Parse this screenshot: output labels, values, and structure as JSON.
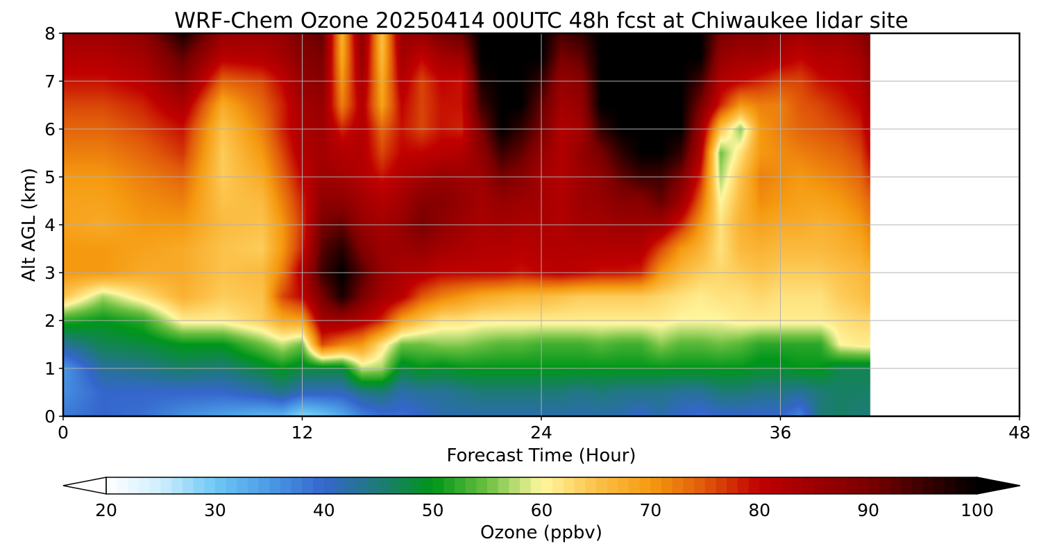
{
  "chart_data": {
    "type": "heatmap",
    "title": "WRF-Chem Ozone  20250414 00UTC 48h fcst at Chiwaukee lidar site",
    "xlabel": "Forecast Time (Hour)",
    "ylabel": "Alt AGL (km)",
    "xlim": [
      0,
      48
    ],
    "ylim": [
      0,
      8
    ],
    "xticks": [
      "0",
      "12",
      "24",
      "36",
      "48"
    ],
    "yticks": [
      "0",
      "1",
      "2",
      "3",
      "4",
      "5",
      "6",
      "7",
      "8"
    ],
    "grid": true,
    "data_end_hour": 40.5,
    "colorbar": {
      "label": "Ozone  (ppbv)",
      "range": [
        20,
        100
      ],
      "extend": "both",
      "ticks": [
        "20",
        "30",
        "40",
        "50",
        "60",
        "70",
        "80",
        "90",
        "100"
      ],
      "stops": [
        {
          "v": 20,
          "c": "#ffffff"
        },
        {
          "v": 25,
          "c": "#cfeefc"
        },
        {
          "v": 30,
          "c": "#6ec8f4"
        },
        {
          "v": 35,
          "c": "#4a9ae6"
        },
        {
          "v": 40,
          "c": "#3566cc"
        },
        {
          "v": 45,
          "c": "#1e7a78"
        },
        {
          "v": 50,
          "c": "#00961a"
        },
        {
          "v": 55,
          "c": "#6cc040"
        },
        {
          "v": 60,
          "c": "#fff7a0"
        },
        {
          "v": 65,
          "c": "#fcc24a"
        },
        {
          "v": 70,
          "c": "#f59a10"
        },
        {
          "v": 75,
          "c": "#e0580a"
        },
        {
          "v": 80,
          "c": "#c00000"
        },
        {
          "v": 90,
          "c": "#7a0000"
        },
        {
          "v": 100,
          "c": "#000000"
        }
      ]
    },
    "hours": [
      0,
      2,
      4,
      6,
      8,
      10,
      11,
      12,
      13,
      14,
      15,
      16,
      17,
      18,
      19,
      20,
      21,
      22,
      23,
      24,
      25,
      26,
      27,
      28,
      29,
      30,
      31,
      32,
      33,
      34,
      35,
      36,
      37,
      38,
      39,
      40,
      40.5
    ],
    "altitudes_km": [
      0,
      0.5,
      1,
      1.5,
      2,
      2.5,
      3,
      3.5,
      4,
      4.5,
      5,
      5.5,
      6,
      6.5,
      7,
      7.5,
      8
    ],
    "ozone_ppbv": [
      [
        38,
        36,
        35,
        43,
        52,
        65,
        70,
        70,
        69,
        69,
        70,
        72,
        74,
        76,
        79,
        82,
        85
      ],
      [
        40,
        40,
        43,
        47,
        50,
        57,
        70,
        70,
        68,
        69,
        70,
        72,
        74,
        76,
        79,
        82,
        85
      ],
      [
        39,
        40,
        44,
        48,
        52,
        62,
        68,
        69,
        70,
        71,
        72,
        74,
        76,
        78,
        81,
        84,
        87
      ],
      [
        36,
        40,
        46,
        50,
        61,
        67,
        68,
        68,
        70,
        72,
        74,
        77,
        79,
        83,
        88,
        92,
        98
      ],
      [
        34,
        40,
        45,
        50,
        61,
        64,
        65,
        65,
        66,
        65,
        64,
        64,
        65,
        68,
        74,
        81,
        86
      ],
      [
        32,
        42,
        48,
        55,
        64,
        65,
        66,
        64,
        65,
        66,
        68,
        70,
        72,
        74,
        76,
        82,
        85
      ],
      [
        32,
        44,
        50,
        58,
        68,
        76,
        72,
        70,
        70,
        72,
        74,
        76,
        78,
        78,
        80,
        84,
        86
      ],
      [
        28,
        41,
        48,
        55,
        69,
        80,
        82,
        78,
        77,
        78,
        80,
        82,
        83,
        84,
        86,
        88,
        90
      ],
      [
        30,
        41,
        48,
        76,
        84,
        90,
        95,
        93,
        90,
        87,
        85,
        84,
        85,
        86,
        88,
        90,
        92
      ],
      [
        33,
        41,
        48,
        72,
        85,
        98,
        100,
        97,
        92,
        87,
        84,
        82,
        78,
        72,
        70,
        68,
        67
      ],
      [
        37,
        44,
        58,
        70,
        82,
        90,
        93,
        89,
        86,
        84,
        82,
        82,
        82,
        82,
        84,
        86,
        88
      ],
      [
        39,
        45,
        57,
        62,
        78,
        84,
        86,
        85,
        84,
        82,
        79,
        76,
        74,
        69,
        68,
        66,
        65
      ],
      [
        39,
        42,
        48,
        55,
        69,
        81,
        83,
        85,
        86,
        84,
        82,
        80,
        79,
        80,
        82,
        84,
        86
      ],
      [
        40,
        43,
        50,
        55,
        65,
        75,
        82,
        86,
        90,
        88,
        84,
        80,
        76,
        76,
        76,
        80,
        86
      ],
      [
        42,
        43,
        49,
        56,
        62,
        72,
        80,
        84,
        87,
        88,
        86,
        81,
        79,
        79,
        80,
        84,
        90
      ],
      [
        42,
        44,
        50,
        56,
        62,
        70,
        80,
        83,
        85,
        86,
        85,
        82,
        78,
        79,
        79,
        85,
        92
      ],
      [
        42,
        45,
        50,
        55,
        61,
        68,
        80,
        82,
        83,
        84,
        85,
        87,
        90,
        95,
        98,
        100,
        100
      ],
      [
        42,
        45,
        50,
        54,
        61,
        67,
        80,
        82,
        84,
        86,
        90,
        95,
        100,
        100,
        100,
        100,
        100
      ],
      [
        42,
        45,
        50,
        54,
        61,
        66,
        79,
        81,
        83,
        85,
        88,
        92,
        96,
        100,
        100,
        100,
        100
      ],
      [
        42,
        45,
        50,
        53,
        61,
        66,
        80,
        82,
        83,
        84,
        84,
        86,
        90,
        92,
        96,
        100,
        100
      ],
      [
        42,
        45,
        50,
        53,
        61,
        65,
        81,
        82,
        82,
        82,
        82,
        82,
        82,
        84,
        86,
        90,
        94
      ],
      [
        42,
        44,
        50,
        53,
        61,
        64,
        80,
        82,
        84,
        85,
        85,
        86,
        84,
        86,
        88,
        92,
        96
      ],
      [
        42,
        45,
        50,
        54,
        61,
        64,
        79,
        82,
        84,
        86,
        87,
        90,
        96,
        100,
        100,
        100,
        100
      ],
      [
        42,
        44,
        50,
        53,
        61,
        64,
        79,
        82,
        85,
        88,
        92,
        96,
        100,
        100,
        100,
        100,
        100
      ],
      [
        40,
        44,
        50,
        53,
        61,
        64,
        78,
        82,
        85,
        88,
        95,
        100,
        100,
        100,
        100,
        100,
        100
      ],
      [
        42,
        44,
        50,
        56,
        61,
        63,
        70,
        76,
        84,
        92,
        95,
        100,
        100,
        100,
        100,
        100,
        100
      ],
      [
        40,
        43,
        50,
        54,
        60,
        62,
        66,
        70,
        78,
        85,
        90,
        96,
        100,
        100,
        100,
        100,
        100
      ],
      [
        39,
        43,
        50,
        54,
        60,
        61,
        64,
        67,
        70,
        74,
        78,
        82,
        85,
        90,
        95,
        100,
        100
      ],
      [
        40,
        45,
        50,
        55,
        60,
        62,
        63,
        62,
        62,
        60,
        57,
        55,
        65,
        78,
        82,
        86,
        90
      ],
      [
        40,
        45,
        50,
        54,
        61,
        62,
        64,
        66,
        67,
        66,
        65,
        62,
        56,
        70,
        80,
        84,
        88
      ],
      [
        40,
        44,
        49,
        52,
        61,
        63,
        65,
        67,
        69,
        71,
        72,
        70,
        70,
        72,
        78,
        84,
        88
      ],
      [
        40,
        44,
        49,
        52,
        61,
        62,
        64,
        66,
        68,
        70,
        71,
        71,
        72,
        72,
        76,
        82,
        86
      ],
      [
        37,
        43,
        50,
        52,
        61,
        62,
        64,
        66,
        68,
        69,
        70,
        72,
        74,
        75,
        76,
        80,
        84
      ],
      [
        45,
        45,
        50,
        52,
        61,
        62,
        64,
        66,
        67,
        69,
        71,
        73,
        75,
        76,
        79,
        82,
        86
      ],
      [
        46,
        46,
        47,
        60,
        62,
        64,
        65,
        67,
        68,
        70,
        72,
        74,
        76,
        78,
        80,
        82,
        85
      ],
      [
        45,
        46,
        47,
        61,
        63,
        65,
        66,
        68,
        70,
        72,
        74,
        76,
        78,
        80,
        82,
        84,
        87
      ],
      [
        45,
        46,
        47,
        61,
        63,
        66,
        67,
        70,
        72,
        74,
        77,
        80,
        82,
        84,
        86,
        88,
        90
      ]
    ]
  }
}
